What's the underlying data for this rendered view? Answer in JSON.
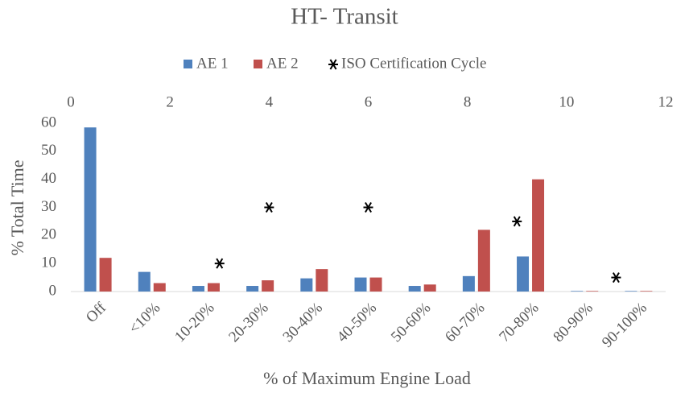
{
  "chart_data": {
    "type": "bar",
    "title": "HT- Transit",
    "x_label": "% of Maximum Engine Load",
    "y_label": "% Total Time",
    "categories": [
      "Off",
      "<10%",
      "10-20%",
      "20-30%",
      "30-40%",
      "40-50%",
      "50-60%",
      "60-70%",
      "70-80%",
      "80-90%",
      "90-100%"
    ],
    "series": [
      {
        "name": "AE 1",
        "color": "#4f81bd",
        "values": [
          58.5,
          7,
          2,
          2,
          4.7,
          5,
          2,
          5.5,
          12.5,
          0.2,
          0.2
        ]
      },
      {
        "name": "AE 2",
        "color": "#c0504d",
        "values": [
          12,
          3,
          3,
          4,
          8,
          5,
          2.5,
          22,
          40,
          0.2,
          0.2
        ]
      },
      {
        "name": "ISO Certification Cycle",
        "type": "scatter",
        "color": "#000000",
        "axis": "x2",
        "x": [
          3,
          4,
          6,
          9,
          11
        ],
        "values": [
          10,
          30,
          30,
          25,
          5
        ]
      }
    ],
    "ylim": [
      0,
      60
    ],
    "yticks": [
      0,
      10,
      20,
      30,
      40,
      50,
      60
    ],
    "x2lim": [
      0,
      12
    ],
    "x2ticks": [
      0,
      2,
      4,
      6,
      8,
      10,
      12
    ],
    "legend": "top"
  }
}
